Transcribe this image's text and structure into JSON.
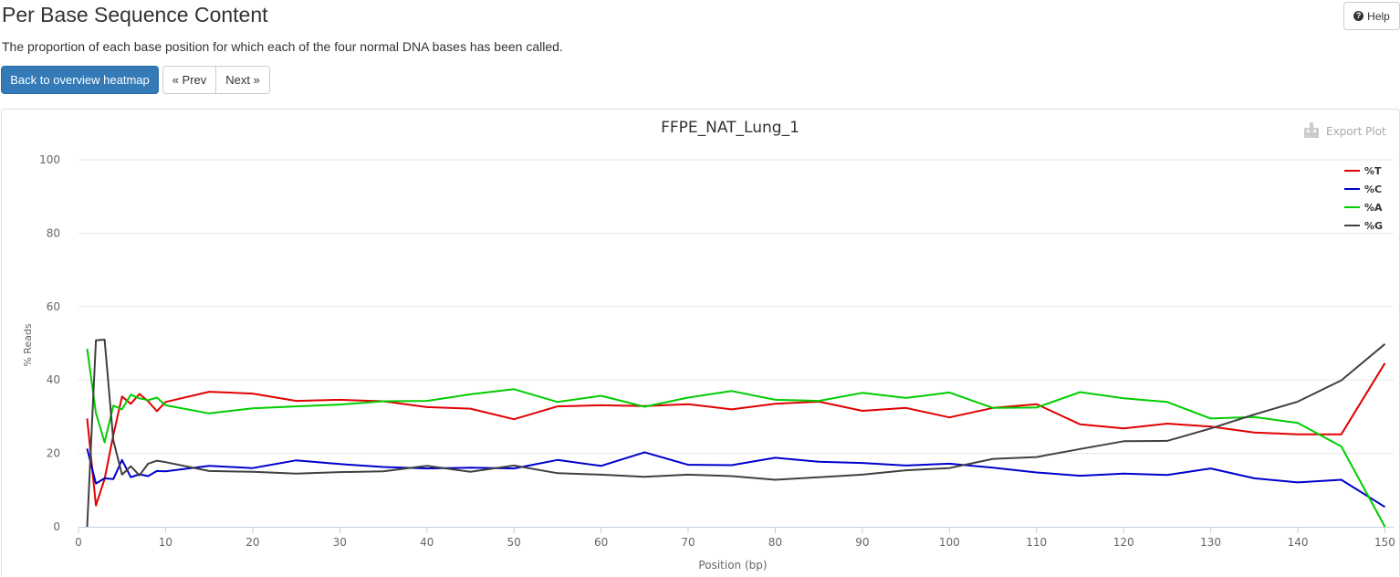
{
  "header": {
    "title": "Per Base Sequence Content",
    "description": "The proportion of each base position for which each of the four normal DNA bases has been called.",
    "help_label": "Help",
    "help_icon": "question-circle-icon"
  },
  "nav": {
    "back_label": "Back to overview heatmap",
    "prev_label": "« Prev",
    "next_label": "Next »"
  },
  "colors": {
    "primary_button": "#337ab7",
    "grid": "#e6e6e6"
  },
  "export_label": "Export Plot",
  "export_icon": "download-icon",
  "chart_data": {
    "type": "line",
    "title": "FFPE_NAT_Lung_1",
    "xlabel": "Position (bp)",
    "ylabel": "% Reads",
    "xlim": [
      0,
      151
    ],
    "ylim": [
      0,
      100
    ],
    "xticks": [
      0,
      10,
      20,
      30,
      40,
      50,
      60,
      70,
      80,
      90,
      100,
      110,
      120,
      130,
      140,
      150
    ],
    "yticks": [
      0,
      20,
      40,
      60,
      80,
      100
    ],
    "grid": true,
    "legend_position": "top-right",
    "x": [
      1,
      2,
      3,
      4,
      5,
      6,
      7,
      8,
      9,
      10,
      15,
      20,
      25,
      30,
      35,
      40,
      45,
      50,
      55,
      60,
      65,
      70,
      75,
      80,
      85,
      90,
      95,
      100,
      105,
      110,
      115,
      120,
      125,
      130,
      135,
      140,
      145,
      150
    ],
    "series": [
      {
        "name": "%T",
        "color": "#e00000",
        "values": [
          29.5,
          5.8,
          13.0,
          25.0,
          35.5,
          33.5,
          36.2,
          34.2,
          31.5,
          34.0,
          36.8,
          36.3,
          34.3,
          34.6,
          34.2,
          32.6,
          32.2,
          29.3,
          32.8,
          33.1,
          32.9,
          33.4,
          32.0,
          33.5,
          34.1,
          31.6,
          32.4,
          29.8,
          32.4,
          33.4,
          27.9,
          26.8,
          28.1,
          27.3,
          25.7,
          25.2,
          25.2,
          44.6
        ]
      },
      {
        "name": "%C",
        "color": "#0000cc",
        "values": [
          21.3,
          11.8,
          13.2,
          13.0,
          18.2,
          13.5,
          14.3,
          13.8,
          15.2,
          15.1,
          16.6,
          16.0,
          18.1,
          17.1,
          16.3,
          15.9,
          16.1,
          15.9,
          18.2,
          16.6,
          20.3,
          16.9,
          16.8,
          18.8,
          17.7,
          17.4,
          16.7,
          17.2,
          16.1,
          14.8,
          13.9,
          14.5,
          14.1,
          15.9,
          13.2,
          12.1,
          12.8,
          5.4
        ]
      },
      {
        "name": "%A",
        "color": "#00cc00",
        "values": [
          48.5,
          31.0,
          23.0,
          33.0,
          32.0,
          36.0,
          35.0,
          34.5,
          35.2,
          33.1,
          30.9,
          32.3,
          32.8,
          33.3,
          34.2,
          34.3,
          36.1,
          37.5,
          34.0,
          35.7,
          32.7,
          35.2,
          37.0,
          34.6,
          34.3,
          36.5,
          35.1,
          36.6,
          32.4,
          32.5,
          36.7,
          35.0,
          34.0,
          29.5,
          29.9,
          28.3,
          21.9,
          0.0
        ]
      },
      {
        "name": "%G",
        "color": "#404040",
        "values": [
          0.0,
          50.8,
          51.0,
          23.5,
          14.2,
          16.5,
          14.0,
          17.2,
          18.0,
          17.6,
          15.2,
          15.0,
          14.5,
          14.9,
          15.1,
          16.6,
          15.0,
          16.7,
          14.6,
          14.2,
          13.6,
          14.2,
          13.8,
          12.8,
          13.5,
          14.2,
          15.4,
          16.0,
          18.5,
          19.0,
          21.2,
          23.3,
          23.4,
          26.8,
          30.6,
          34.1,
          39.9,
          49.8
        ]
      }
    ]
  }
}
